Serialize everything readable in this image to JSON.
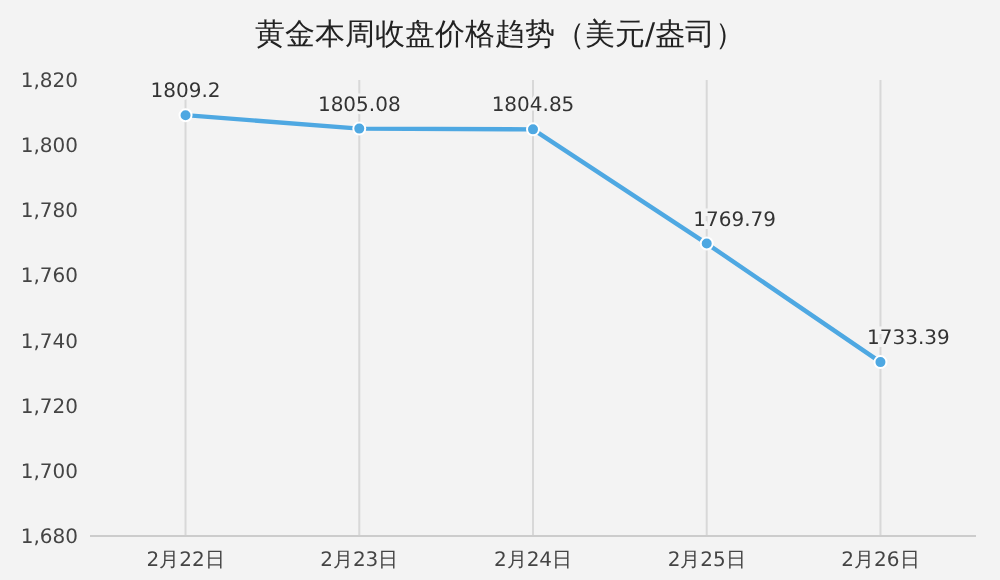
{
  "chart_data": {
    "type": "line",
    "title": "黄金本周收盘价格趋势（美元/盎司）",
    "categories": [
      "2月22日",
      "2月23日",
      "2月24日",
      "2月25日",
      "2月26日"
    ],
    "series": [
      {
        "color": "#4ea8e2",
        "values": [
          1809.2,
          1805.08,
          1804.85,
          1769.79,
          1733.39
        ]
      }
    ],
    "ylim": [
      1680,
      1820
    ],
    "yticks": [
      {
        "value": 1680,
        "label": "1,680"
      },
      {
        "value": 1700,
        "label": "1,700"
      },
      {
        "value": 1720,
        "label": "1,720"
      },
      {
        "value": 1740,
        "label": "1,740"
      },
      {
        "value": 1760,
        "label": "1,760"
      },
      {
        "value": 1780,
        "label": "1,780"
      },
      {
        "value": 1800,
        "label": "1,800"
      },
      {
        "value": 1820,
        "label": "1,820"
      }
    ],
    "grid": "x",
    "marker": "circle",
    "line_style": "solid",
    "data_labels": true
  }
}
